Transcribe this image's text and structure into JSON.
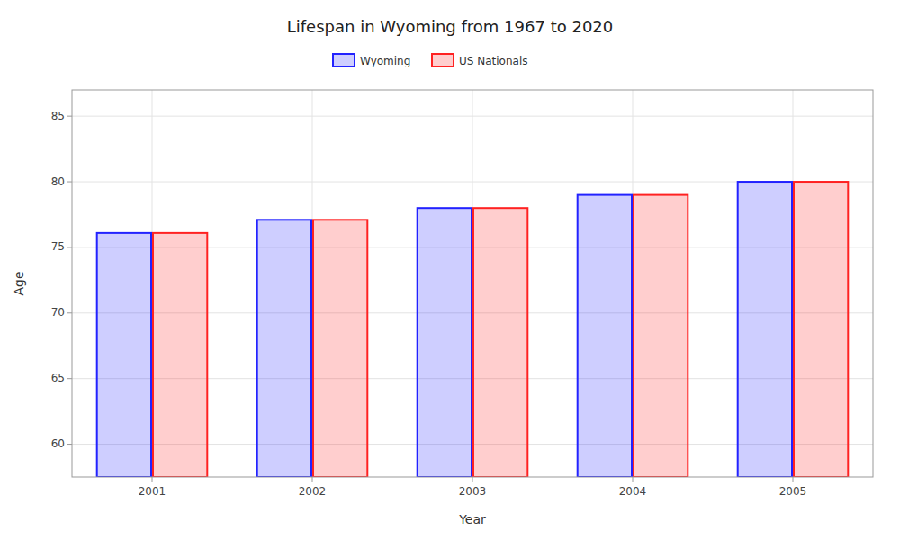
{
  "chart_data": {
    "type": "bar",
    "title": "Lifespan in Wyoming from 1967 to 2020",
    "x_label": "Year",
    "y_label": "Age",
    "categories": [
      "2001",
      "2002",
      "2003",
      "2004",
      "2005"
    ],
    "series": [
      {
        "name": "Wyoming",
        "color": "#2222ff",
        "values": [
          76.1,
          77.1,
          78.0,
          79.0,
          80.0
        ]
      },
      {
        "name": "US Nationals",
        "color": "#ff2222",
        "values": [
          76.1,
          77.1,
          78.0,
          79.0,
          80.0
        ]
      }
    ],
    "ylim": [
      57.5,
      87
    ],
    "yticks": [
      60,
      65,
      70,
      75,
      80,
      85
    ],
    "grid": true,
    "legend": "top"
  }
}
